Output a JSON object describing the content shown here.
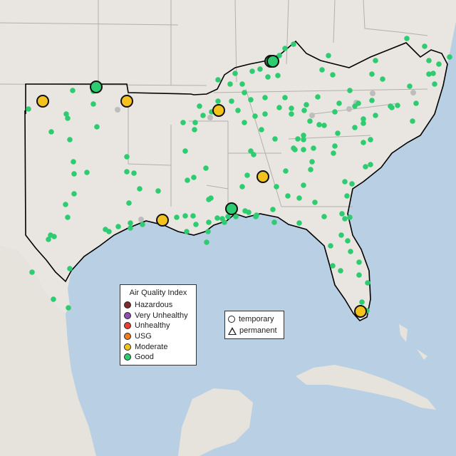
{
  "legend": {
    "title": "Air Quality Index",
    "categories": [
      {
        "label": "Hazardous",
        "color": "#7e2a2a"
      },
      {
        "label": "Very Unhealthy",
        "color": "#8e4fb0"
      },
      {
        "label": "Unhealthy",
        "color": "#e8402e"
      },
      {
        "label": "USG",
        "color": "#ef7d1f"
      },
      {
        "label": "Moderate",
        "color": "#f3c21c"
      },
      {
        "label": "Good",
        "color": "#2ecc71"
      }
    ]
  },
  "monitor_types": [
    {
      "label": "temporary",
      "shape": "circle"
    },
    {
      "label": "permanent",
      "shape": "triangle"
    }
  ],
  "colors": {
    "water": "#b9cfe3",
    "land": "#e9e6e1",
    "state_border": "#b3afaa",
    "region_outline": "#000000",
    "inactive_station": "#bdbdbd"
  }
}
